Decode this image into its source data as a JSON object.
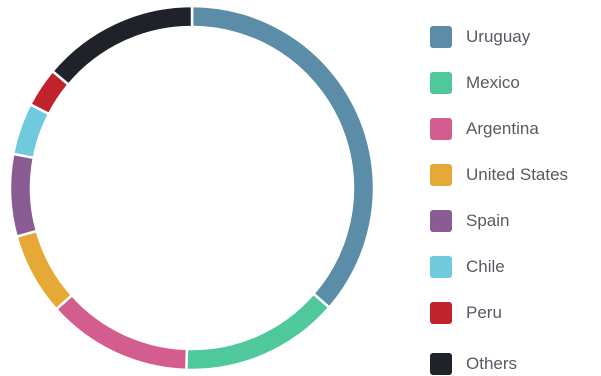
{
  "chart_data": {
    "type": "pie",
    "title": "",
    "legend_position": "right",
    "categories": [
      "Uruguay",
      "Mexico",
      "Argentina",
      "United States",
      "Spain",
      "Chile",
      "Peru",
      "Others"
    ],
    "values": [
      36.4,
      14.1,
      12.9,
      7.3,
      7.3,
      4.6,
      3.5,
      13.9
    ],
    "colors": [
      "#5b8da8",
      "#4fc99b",
      "#d35d8e",
      "#e6a935",
      "#8a5c93",
      "#6fcadd",
      "#c0232b",
      "#1f2329"
    ],
    "donut": true
  }
}
